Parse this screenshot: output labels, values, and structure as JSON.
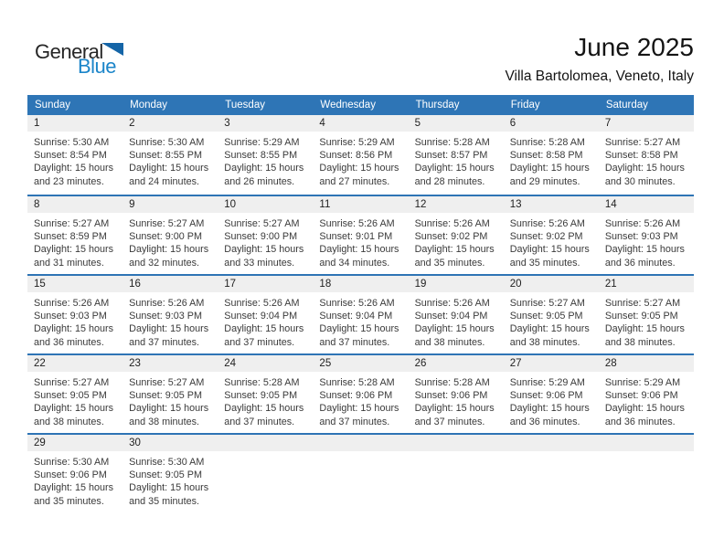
{
  "logo": {
    "line1": "General",
    "line2": "Blue",
    "triangle_color": "#1565a7",
    "blue_color": "#1b85c9"
  },
  "title": "June 2025",
  "subtitle": "Villa Bartolomea, Veneto, Italy",
  "colors": {
    "header_bg": "#2E75B6",
    "week_divider": "#2E74B5",
    "day_band_bg": "#EFEFEF"
  },
  "weekday_headers": [
    "Sunday",
    "Monday",
    "Tuesday",
    "Wednesday",
    "Thursday",
    "Friday",
    "Saturday"
  ],
  "weeks": [
    [
      {
        "day": "1",
        "lines": [
          "Sunrise: 5:30 AM",
          "Sunset: 8:54 PM",
          "Daylight: 15 hours",
          "and 23 minutes."
        ]
      },
      {
        "day": "2",
        "lines": [
          "Sunrise: 5:30 AM",
          "Sunset: 8:55 PM",
          "Daylight: 15 hours",
          "and 24 minutes."
        ]
      },
      {
        "day": "3",
        "lines": [
          "Sunrise: 5:29 AM",
          "Sunset: 8:55 PM",
          "Daylight: 15 hours",
          "and 26 minutes."
        ]
      },
      {
        "day": "4",
        "lines": [
          "Sunrise: 5:29 AM",
          "Sunset: 8:56 PM",
          "Daylight: 15 hours",
          "and 27 minutes."
        ]
      },
      {
        "day": "5",
        "lines": [
          "Sunrise: 5:28 AM",
          "Sunset: 8:57 PM",
          "Daylight: 15 hours",
          "and 28 minutes."
        ]
      },
      {
        "day": "6",
        "lines": [
          "Sunrise: 5:28 AM",
          "Sunset: 8:58 PM",
          "Daylight: 15 hours",
          "and 29 minutes."
        ]
      },
      {
        "day": "7",
        "lines": [
          "Sunrise: 5:27 AM",
          "Sunset: 8:58 PM",
          "Daylight: 15 hours",
          "and 30 minutes."
        ]
      }
    ],
    [
      {
        "day": "8",
        "lines": [
          "Sunrise: 5:27 AM",
          "Sunset: 8:59 PM",
          "Daylight: 15 hours",
          "and 31 minutes."
        ]
      },
      {
        "day": "9",
        "lines": [
          "Sunrise: 5:27 AM",
          "Sunset: 9:00 PM",
          "Daylight: 15 hours",
          "and 32 minutes."
        ]
      },
      {
        "day": "10",
        "lines": [
          "Sunrise: 5:27 AM",
          "Sunset: 9:00 PM",
          "Daylight: 15 hours",
          "and 33 minutes."
        ]
      },
      {
        "day": "11",
        "lines": [
          "Sunrise: 5:26 AM",
          "Sunset: 9:01 PM",
          "Daylight: 15 hours",
          "and 34 minutes."
        ]
      },
      {
        "day": "12",
        "lines": [
          "Sunrise: 5:26 AM",
          "Sunset: 9:02 PM",
          "Daylight: 15 hours",
          "and 35 minutes."
        ]
      },
      {
        "day": "13",
        "lines": [
          "Sunrise: 5:26 AM",
          "Sunset: 9:02 PM",
          "Daylight: 15 hours",
          "and 35 minutes."
        ]
      },
      {
        "day": "14",
        "lines": [
          "Sunrise: 5:26 AM",
          "Sunset: 9:03 PM",
          "Daylight: 15 hours",
          "and 36 minutes."
        ]
      }
    ],
    [
      {
        "day": "15",
        "lines": [
          "Sunrise: 5:26 AM",
          "Sunset: 9:03 PM",
          "Daylight: 15 hours",
          "and 36 minutes."
        ]
      },
      {
        "day": "16",
        "lines": [
          "Sunrise: 5:26 AM",
          "Sunset: 9:03 PM",
          "Daylight: 15 hours",
          "and 37 minutes."
        ]
      },
      {
        "day": "17",
        "lines": [
          "Sunrise: 5:26 AM",
          "Sunset: 9:04 PM",
          "Daylight: 15 hours",
          "and 37 minutes."
        ]
      },
      {
        "day": "18",
        "lines": [
          "Sunrise: 5:26 AM",
          "Sunset: 9:04 PM",
          "Daylight: 15 hours",
          "and 37 minutes."
        ]
      },
      {
        "day": "19",
        "lines": [
          "Sunrise: 5:26 AM",
          "Sunset: 9:04 PM",
          "Daylight: 15 hours",
          "and 38 minutes."
        ]
      },
      {
        "day": "20",
        "lines": [
          "Sunrise: 5:27 AM",
          "Sunset: 9:05 PM",
          "Daylight: 15 hours",
          "and 38 minutes."
        ]
      },
      {
        "day": "21",
        "lines": [
          "Sunrise: 5:27 AM",
          "Sunset: 9:05 PM",
          "Daylight: 15 hours",
          "and 38 minutes."
        ]
      }
    ],
    [
      {
        "day": "22",
        "lines": [
          "Sunrise: 5:27 AM",
          "Sunset: 9:05 PM",
          "Daylight: 15 hours",
          "and 38 minutes."
        ]
      },
      {
        "day": "23",
        "lines": [
          "Sunrise: 5:27 AM",
          "Sunset: 9:05 PM",
          "Daylight: 15 hours",
          "and 38 minutes."
        ]
      },
      {
        "day": "24",
        "lines": [
          "Sunrise: 5:28 AM",
          "Sunset: 9:05 PM",
          "Daylight: 15 hours",
          "and 37 minutes."
        ]
      },
      {
        "day": "25",
        "lines": [
          "Sunrise: 5:28 AM",
          "Sunset: 9:06 PM",
          "Daylight: 15 hours",
          "and 37 minutes."
        ]
      },
      {
        "day": "26",
        "lines": [
          "Sunrise: 5:28 AM",
          "Sunset: 9:06 PM",
          "Daylight: 15 hours",
          "and 37 minutes."
        ]
      },
      {
        "day": "27",
        "lines": [
          "Sunrise: 5:29 AM",
          "Sunset: 9:06 PM",
          "Daylight: 15 hours",
          "and 36 minutes."
        ]
      },
      {
        "day": "28",
        "lines": [
          "Sunrise: 5:29 AM",
          "Sunset: 9:06 PM",
          "Daylight: 15 hours",
          "and 36 minutes."
        ]
      }
    ],
    [
      {
        "day": "29",
        "lines": [
          "Sunrise: 5:30 AM",
          "Sunset: 9:06 PM",
          "Daylight: 15 hours",
          "and 35 minutes."
        ]
      },
      {
        "day": "30",
        "lines": [
          "Sunrise: 5:30 AM",
          "Sunset: 9:05 PM",
          "Daylight: 15 hours",
          "and 35 minutes."
        ]
      },
      null,
      null,
      null,
      null,
      null
    ]
  ]
}
